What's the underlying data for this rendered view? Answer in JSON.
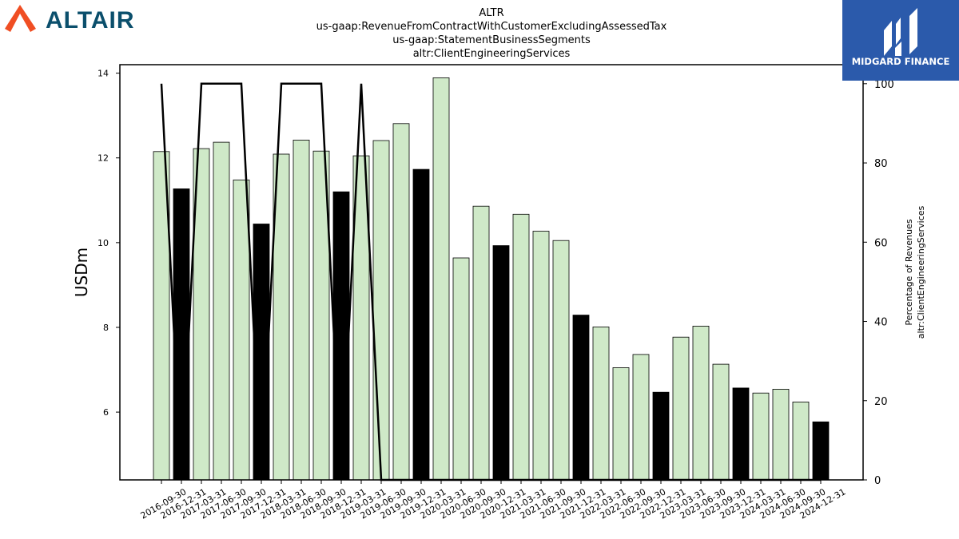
{
  "brand": {
    "left_logo_text": "ALTAIR",
    "left_logo_color": "#0b4f6c",
    "left_logo_mark_color": "#f04e23",
    "right_logo_text": "MIDGARD FINANCE",
    "right_logo_bg": "#2b5aab"
  },
  "chart_data": {
    "type": "bar",
    "title_lines": [
      "ALTR",
      "us-gaap:RevenueFromContractWithCustomerExcludingAssessedTax",
      "us-gaap:StatementBusinessSegments",
      "altr:ClientEngineeringServices"
    ],
    "ylabel": "USDm",
    "ylabel_right": [
      "Percentage of Revenues",
      "altr:ClientEngineeringServices"
    ],
    "ylim": [
      4.4,
      14.2
    ],
    "yticks": [
      6,
      8,
      10,
      12,
      14
    ],
    "ylim_right": [
      0,
      104.8
    ],
    "yticks_right": [
      0,
      20,
      40,
      60,
      80,
      100
    ],
    "grid": false,
    "colors": {
      "quarter": "#cfe9c8",
      "year_end": "#000000",
      "line": "#000000"
    },
    "categories": [
      "2016-09-30",
      "2016-12-31",
      "2017-03-31",
      "2017-06-30",
      "2017-09-30",
      "2017-12-31",
      "2018-03-31",
      "2018-06-30",
      "2018-09-30",
      "2018-12-31",
      "2019-03-31",
      "2019-06-30",
      "2019-09-30",
      "2019-12-31",
      "2020-03-31",
      "2020-06-30",
      "2020-09-30",
      "2020-12-31",
      "2021-03-31",
      "2021-06-30",
      "2021-09-30",
      "2021-12-31",
      "2022-03-31",
      "2022-06-30",
      "2022-09-30",
      "2022-12-31",
      "2023-03-31",
      "2023-06-30",
      "2023-09-30",
      "2023-12-31",
      "2024-03-31",
      "2024-06-30",
      "2024-09-30",
      "2024-12-31"
    ],
    "values": [
      12.15,
      11.27,
      12.22,
      12.37,
      11.48,
      10.44,
      12.09,
      12.42,
      12.16,
      11.2,
      12.05,
      12.41,
      12.81,
      11.73,
      13.89,
      9.64,
      10.86,
      9.93,
      10.67,
      10.27,
      10.05,
      8.29,
      8.01,
      7.05,
      7.36,
      6.47,
      7.77,
      8.03,
      7.13,
      6.57,
      6.45,
      6.54,
      6.24,
      5.77
    ],
    "year_end": [
      false,
      true,
      false,
      false,
      false,
      true,
      false,
      false,
      false,
      true,
      false,
      false,
      false,
      true,
      false,
      false,
      false,
      true,
      false,
      false,
      false,
      true,
      false,
      false,
      false,
      true,
      false,
      false,
      false,
      true,
      false,
      false,
      false,
      true
    ],
    "percentage_series": [
      100,
      0,
      100,
      100,
      100,
      0,
      100,
      100,
      100,
      0,
      100,
      0,
      0,
      0,
      0,
      0,
      0,
      0,
      0,
      0,
      0,
      0,
      0,
      0,
      0,
      0,
      0,
      0,
      0,
      0,
      0,
      0,
      0,
      0
    ]
  }
}
